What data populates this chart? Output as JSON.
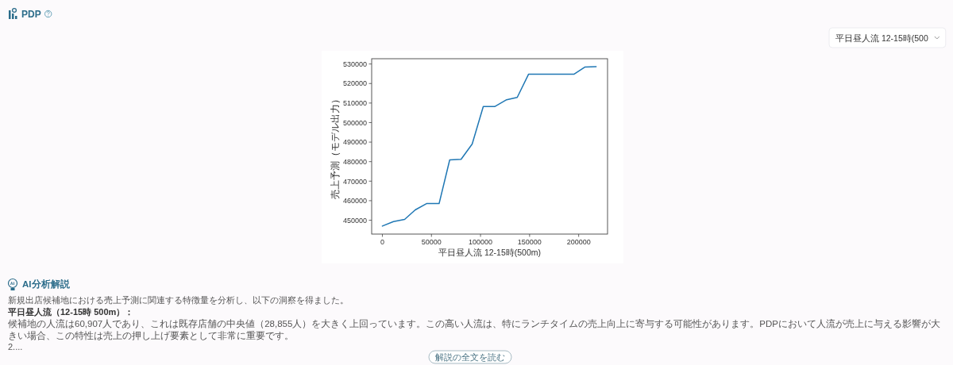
{
  "chart_data": {
    "type": "line",
    "title": "PDP",
    "xlabel": "平日昼人流 12-15時(500m)",
    "ylabel": "売上予測（モデル出力）",
    "x": [
      0,
      11300,
      22700,
      33500,
      45000,
      57800,
      68600,
      80200,
      91500,
      102800,
      114400,
      126600,
      137400,
      149000,
      195400,
      206200,
      217800
    ],
    "values": [
      447000,
      449300,
      450400,
      455300,
      458500,
      458500,
      480900,
      481200,
      489000,
      508200,
      508200,
      511700,
      512900,
      524800,
      524800,
      528400,
      528600
    ],
    "color": "#1f77b4",
    "xlim": [
      -10900,
      229400
    ],
    "ylim": [
      442900,
      532700
    ],
    "xticks": [
      0,
      50000,
      100000,
      150000,
      200000
    ],
    "yticks": [
      450000,
      460000,
      470000,
      480000,
      490000,
      500000,
      510000,
      520000,
      530000
    ],
    "annotations": [
      "平日昼人流 12-15時(500",
      "AI分析解説",
      "新規出店候補地における売上予測に関連する特徴量を分析し、以下の洞察を得ました。",
      "平日昼人流（12-15時 500m）：",
      "候補地の人流は60,907人であり、これは既存店舗の中央値（28,855人）を大きく上回っています。この高い人流は、特にランチタイムの売上向上に寄与する可能性があります。PDPにおいて人流が売上に与える影響が大きい場合、この特性は売上の押し上げ要素として非常に重要です。",
      "2....",
      "解説の全文を読む"
    ]
  }
}
